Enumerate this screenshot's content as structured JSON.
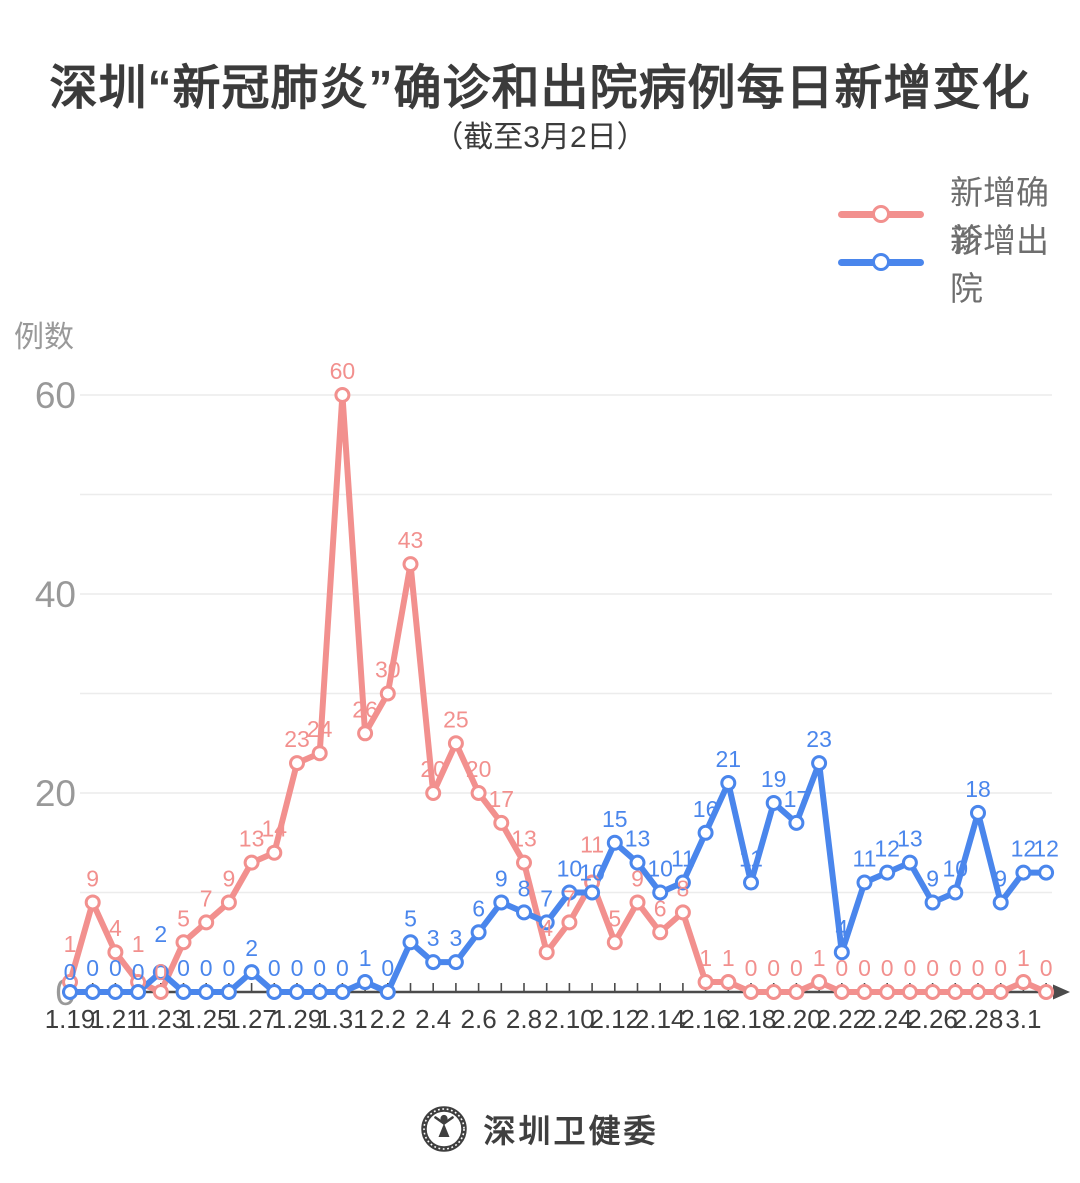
{
  "page": {
    "title": "深圳“新冠肺炎”确诊和出院病例每日新增变化",
    "subtitle": "（截至3月2日）",
    "footer": {
      "brand": "深圳卫健委",
      "logo_icon": "shenzhen-health-seal-icon"
    }
  },
  "legend": [
    {
      "label": "新增确诊",
      "color": "#F2908E"
    },
    {
      "label": "新增出院",
      "color": "#4A86EC"
    }
  ],
  "colors": {
    "confirmed": "#F2908E",
    "discharged": "#4A86EC",
    "grid": "#ECECEC",
    "axis": "#4B4B4B",
    "y_tick_text": "#999999",
    "x_tick_text": "#3D3D3D",
    "title_text": "#3B3B3B"
  },
  "chart_data": {
    "type": "line",
    "title": "深圳“新冠肺炎”确诊和出院病例每日新增变化",
    "subtitle": "（截至3月2日）",
    "xlabel": "",
    "ylabel": "例数",
    "ylim": [
      0,
      60
    ],
    "yticks": [
      0,
      20,
      40,
      60
    ],
    "grid_interval": 10,
    "grid": true,
    "legend_position": "top-right",
    "marker": "open-circle",
    "point_labels": true,
    "x": [
      "1.19",
      "1.20",
      "1.21",
      "1.22",
      "1.23",
      "1.24",
      "1.25",
      "1.26",
      "1.27",
      "1.28",
      "1.29",
      "1.30",
      "1.31",
      "2.1",
      "2.2",
      "2.3",
      "2.4",
      "2.5",
      "2.6",
      "2.7",
      "2.8",
      "2.9",
      "2.10",
      "2.11",
      "2.12",
      "2.13",
      "2.14",
      "2.15",
      "2.16",
      "2.17",
      "2.18",
      "2.19",
      "2.20",
      "2.21",
      "2.22",
      "2.23",
      "2.24",
      "2.25",
      "2.26",
      "2.27",
      "2.28",
      "2.29",
      "3.1",
      "3.2"
    ],
    "xtick_labels": [
      "1.19",
      "1.21",
      "1.23",
      "1.25",
      "1.27",
      "1.29",
      "1.31",
      "2.2",
      "2.4",
      "2.6",
      "2.8",
      "2.10",
      "2.12",
      "2.14",
      "2.16",
      "2.18",
      "2.20",
      "2.22",
      "2.24",
      "2.26",
      "2.28",
      "3.1"
    ],
    "series": [
      {
        "id": "confirmed",
        "name": "新增确诊",
        "color": "#F2908E",
        "values": [
          1,
          9,
          4,
          1,
          0,
          5,
          7,
          9,
          13,
          14,
          23,
          24,
          60,
          26,
          30,
          43,
          20,
          25,
          20,
          17,
          13,
          4,
          7,
          11,
          5,
          9,
          6,
          8,
          1,
          1,
          0,
          0,
          0,
          1,
          0,
          0,
          0,
          0,
          0,
          0,
          0,
          0,
          1,
          0
        ]
      },
      {
        "id": "discharged",
        "name": "新增出院",
        "color": "#4A86EC",
        "values": [
          0,
          0,
          0,
          0,
          2,
          0,
          0,
          0,
          2,
          0,
          0,
          0,
          0,
          1,
          0,
          5,
          3,
          3,
          6,
          9,
          8,
          7,
          10,
          10,
          15,
          13,
          10,
          11,
          16,
          21,
          11,
          19,
          17,
          23,
          4,
          11,
          12,
          13,
          9,
          10,
          18,
          9,
          12,
          12
        ]
      }
    ]
  }
}
